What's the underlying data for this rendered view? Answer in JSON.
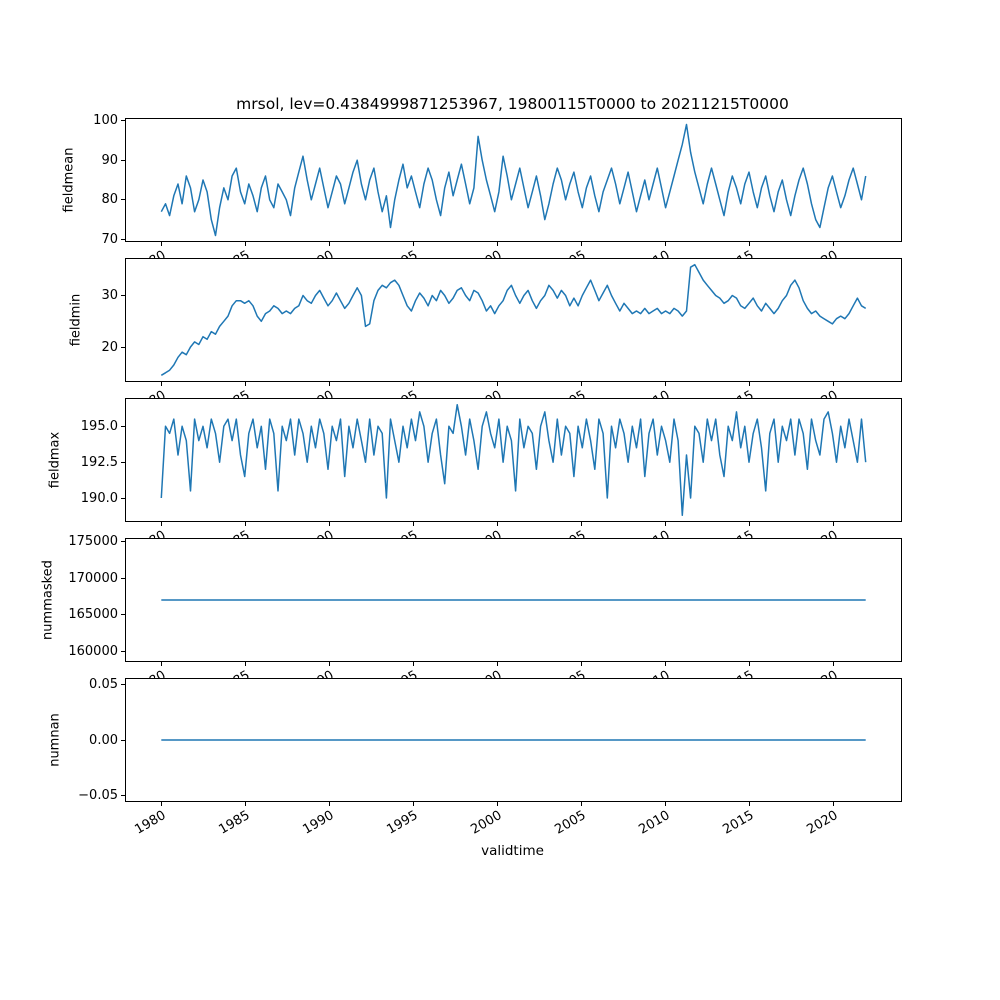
{
  "chart_data": {
    "type": "line",
    "title": "mrsol, lev=0.4384999871253967, 19800115T0000 to 20211215T0000",
    "xlabel": "validtime",
    "color": "#1f77b4",
    "grid": false,
    "legend": "none",
    "xlim": [
      1977.94,
      2024.06
    ],
    "x_data_range": [
      1980.04,
      2021.96
    ],
    "x_ticks": [
      1980,
      1985,
      1990,
      1995,
      2000,
      2005,
      2010,
      2015,
      2020
    ],
    "x_tick_labels": [
      "1980",
      "1985",
      "1990",
      "1995",
      "2000",
      "2005",
      "2010",
      "2015",
      "2020"
    ],
    "subplots": [
      {
        "ylabel": "fieldmean",
        "yticks": [
          70,
          80,
          90,
          100
        ],
        "ytick_labels": [
          "70",
          "80",
          "90",
          "100"
        ],
        "ylim": [
          69.6,
          100.4
        ],
        "values": [
          77,
          79,
          76,
          81,
          84,
          79,
          86,
          83,
          77,
          80,
          85,
          82,
          75,
          71,
          78,
          83,
          80,
          86,
          88,
          82,
          79,
          84,
          81,
          77,
          83,
          86,
          80,
          78,
          84,
          82,
          80,
          76,
          83,
          87,
          91,
          85,
          80,
          84,
          88,
          83,
          78,
          82,
          86,
          84,
          79,
          83,
          87,
          90,
          84,
          80,
          85,
          88,
          82,
          77,
          81,
          73,
          80,
          85,
          89,
          83,
          86,
          82,
          78,
          84,
          88,
          85,
          80,
          76,
          83,
          87,
          81,
          85,
          89,
          84,
          79,
          83,
          96,
          90,
          85,
          81,
          77,
          82,
          91,
          86,
          80,
          84,
          88,
          83,
          78,
          82,
          86,
          81,
          75,
          79,
          84,
          88,
          85,
          80,
          84,
          87,
          82,
          78,
          83,
          86,
          81,
          77,
          82,
          85,
          88,
          84,
          79,
          83,
          87,
          82,
          77,
          81,
          85,
          80,
          84,
          88,
          83,
          78,
          82,
          86,
          90,
          94,
          99,
          92,
          87,
          83,
          79,
          84,
          88,
          84,
          80,
          76,
          82,
          86,
          83,
          79,
          84,
          87,
          82,
          78,
          83,
          86,
          81,
          77,
          82,
          85,
          80,
          76,
          81,
          85,
          88,
          84,
          79,
          75,
          73,
          78,
          83,
          86,
          82,
          78,
          81,
          85,
          88,
          84,
          80,
          86
        ]
      },
      {
        "ylabel": "fieldmin",
        "yticks": [
          20,
          30
        ],
        "ytick_labels": [
          "20",
          "30"
        ],
        "ylim": [
          13.4,
          37.1
        ],
        "values": [
          14.5,
          15,
          15.5,
          16.5,
          18,
          19,
          18.5,
          20,
          21,
          20.5,
          22,
          21.5,
          23,
          22.5,
          24,
          25,
          26,
          28,
          29,
          29,
          28.5,
          29,
          28,
          26,
          25,
          26.5,
          27,
          28,
          27.5,
          26.5,
          27,
          26.5,
          27.5,
          28,
          30,
          29,
          28.5,
          30,
          31,
          29.5,
          28,
          29,
          30.5,
          29,
          27.5,
          28.5,
          30,
          31.5,
          30,
          24,
          24.5,
          29,
          31,
          32,
          31.5,
          32.5,
          33,
          32,
          30,
          28,
          27,
          29,
          30.5,
          29.5,
          28,
          30,
          29,
          31,
          30,
          28.5,
          29.5,
          31,
          31.5,
          30,
          29,
          31,
          30.5,
          29,
          27,
          28,
          26.5,
          28,
          29,
          31,
          32,
          30,
          28.5,
          30,
          31,
          29,
          27.5,
          29,
          30,
          32,
          31,
          29.5,
          31,
          30,
          28,
          29.5,
          28,
          30,
          31.5,
          33,
          31,
          29,
          30.5,
          32,
          30,
          28.5,
          27,
          28.5,
          27.5,
          26.5,
          27,
          26.5,
          27.5,
          26.5,
          27,
          27.5,
          26.5,
          27,
          26.5,
          27.5,
          27,
          26,
          27,
          35.5,
          36,
          34.5,
          33,
          32,
          31,
          30,
          29.5,
          28.5,
          29,
          30,
          29.5,
          28,
          27.5,
          28.5,
          29.5,
          28,
          27,
          28.5,
          27.5,
          26.5,
          27.5,
          29,
          30,
          32,
          33,
          31.5,
          29,
          27.5,
          26.5,
          27,
          26,
          25.5,
          25,
          24.5,
          25.5,
          26,
          25.5,
          26.5,
          28,
          29.5,
          28,
          27.5
        ]
      },
      {
        "ylabel": "fieldmax",
        "yticks": [
          190.0,
          192.5,
          195.0
        ],
        "ytick_labels": [
          "190.0",
          "192.5",
          "195.0"
        ],
        "ylim": [
          188.4,
          196.9
        ],
        "values": [
          190,
          195,
          194.5,
          195.5,
          193,
          195,
          194,
          190.5,
          195.5,
          194,
          195,
          193.5,
          195.5,
          194.5,
          192.5,
          195,
          195.5,
          194,
          195.5,
          193,
          191.5,
          194.5,
          195.5,
          193.5,
          195,
          192,
          195.5,
          194.5,
          190.5,
          195,
          194,
          195.5,
          193,
          195.5,
          194.5,
          192.5,
          195,
          193.5,
          195.5,
          194.5,
          192,
          195,
          194,
          195.5,
          191.5,
          195,
          193.5,
          195.5,
          194,
          192.5,
          195.5,
          193,
          195,
          194.5,
          190,
          195.5,
          194,
          192.5,
          195,
          193.5,
          195.5,
          194,
          196,
          195,
          192.5,
          194.5,
          195.5,
          193,
          191,
          195,
          194.5,
          196.5,
          195,
          193,
          195.5,
          194,
          192,
          195,
          196,
          194.5,
          193.5,
          195.5,
          192.5,
          195,
          194,
          190.5,
          195.5,
          193.5,
          195,
          194.5,
          192,
          195,
          196,
          194,
          192.5,
          195.5,
          193,
          195,
          194.5,
          191.5,
          195,
          193.5,
          195.5,
          194,
          192,
          195.5,
          194.5,
          190,
          195,
          193.5,
          195.5,
          194.5,
          192.5,
          195,
          193.5,
          195.5,
          191.5,
          194.5,
          195.5,
          193,
          195,
          194,
          192.5,
          195.5,
          194,
          188.8,
          193,
          190,
          195,
          194.5,
          192.5,
          195.5,
          194,
          195.5,
          193,
          191.5,
          195,
          194,
          196,
          193.5,
          195,
          192.5,
          194.5,
          195.5,
          193.5,
          190.5,
          194.5,
          195.5,
          192.5,
          195,
          194,
          195.5,
          193,
          195.5,
          194.5,
          192,
          195.5,
          194,
          193,
          195.5,
          196,
          194.5,
          192.5,
          195,
          193.5,
          195.5,
          194,
          192.5,
          195.5,
          192.5
        ]
      },
      {
        "ylabel": "nummasked",
        "yticks": [
          160000,
          165000,
          170000,
          175000
        ],
        "ytick_labels": [
          "160000",
          "165000",
          "170000",
          "175000"
        ],
        "ylim": [
          158650,
          175350
        ],
        "values": [
          167000,
          167000
        ]
      },
      {
        "ylabel": "numnan",
        "yticks": [
          -0.05,
          0.0,
          0.05
        ],
        "ytick_labels": [
          "−0.05",
          "0.00",
          "0.05"
        ],
        "ylim": [
          -0.0553,
          0.0553
        ],
        "values": [
          0,
          0
        ]
      }
    ]
  }
}
